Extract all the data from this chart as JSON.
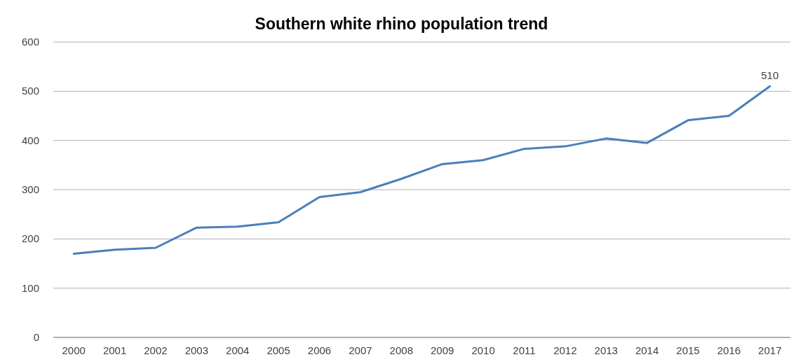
{
  "chart_data": {
    "type": "line",
    "title": "Southern white rhino population trend",
    "categories": [
      "2000",
      "2001",
      "2002",
      "2003",
      "2004",
      "2005",
      "2006",
      "2007",
      "2008",
      "2009",
      "2010",
      "2011",
      "2012",
      "2013",
      "2014",
      "2015",
      "2016",
      "2017"
    ],
    "series": [
      {
        "color": "#4a7ebb",
        "values": [
          170,
          178,
          182,
          223,
          225,
          234,
          285,
          295,
          322,
          352,
          360,
          383,
          388,
          404,
          395,
          441,
          450,
          510
        ],
        "value_labels": [
          null,
          null,
          null,
          null,
          null,
          null,
          null,
          null,
          null,
          null,
          null,
          null,
          null,
          null,
          null,
          null,
          null,
          "510"
        ]
      }
    ],
    "ylim": [
      0,
      600
    ],
    "yticks": [
      0,
      100,
      200,
      300,
      400,
      500,
      600
    ],
    "grid": "y"
  }
}
